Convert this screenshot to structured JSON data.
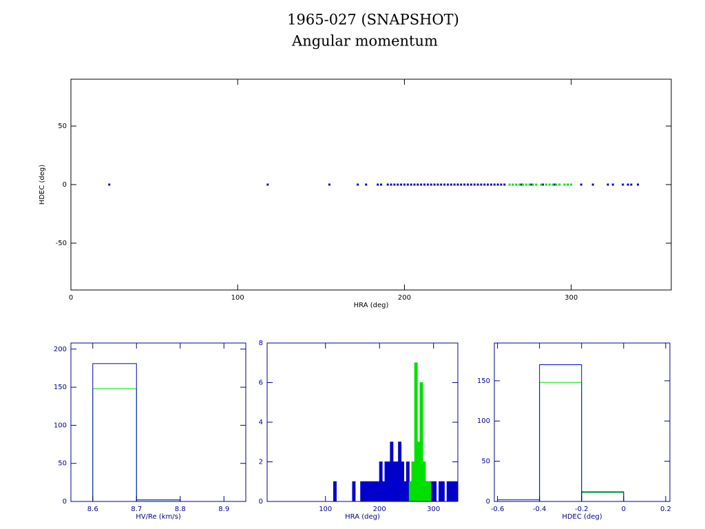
{
  "header": {
    "title": "1965-027 (SNAPSHOT)",
    "subtitle": "Angular momentum"
  },
  "chart_data": [
    {
      "type": "scatter",
      "xlabel": "HRA (deg)",
      "ylabel": "HDEC (deg)",
      "xlim": [
        0,
        360
      ],
      "ylim": [
        -90,
        90
      ],
      "xticks": [
        0,
        100,
        200,
        300
      ],
      "yticks": [
        -50,
        0,
        50
      ],
      "axis_color": "#000000",
      "series": [
        {
          "color": "#0000cc",
          "x": [
            23,
            118,
            155,
            172,
            177,
            184,
            186,
            190,
            192,
            194,
            196,
            198,
            200,
            202,
            204,
            206,
            208,
            210,
            212,
            214,
            216,
            218,
            220,
            222,
            224,
            226,
            228,
            230,
            232,
            234,
            236,
            238,
            240,
            242,
            244,
            246,
            248,
            250,
            252,
            254,
            256,
            258,
            260,
            265,
            270,
            276,
            283,
            290,
            298,
            306,
            313,
            322,
            325,
            331,
            334,
            336,
            340
          ],
          "values": [
            0,
            0,
            0,
            0,
            0,
            0,
            0,
            0,
            0,
            0,
            0,
            0,
            0,
            0,
            0,
            0,
            0,
            0,
            0,
            0,
            0,
            0,
            0,
            0,
            0,
            0,
            0,
            0,
            0,
            0,
            0,
            0,
            0,
            0,
            0,
            0,
            0,
            0,
            0,
            0,
            0,
            0,
            0,
            0,
            0,
            0,
            0,
            0,
            0,
            0,
            0,
            0,
            0,
            0,
            0,
            0,
            0
          ]
        },
        {
          "color": "#00e000",
          "x": [
            263,
            265,
            267,
            269,
            271,
            273,
            275,
            277,
            279,
            282,
            285,
            287,
            289,
            291,
            293,
            296,
            298,
            300
          ],
          "values": [
            0,
            0,
            0,
            0,
            0,
            0,
            0,
            0,
            0,
            0,
            0,
            0,
            0,
            0,
            0,
            0,
            0,
            0
          ]
        }
      ]
    },
    {
      "type": "histogram",
      "xlabel": "HV/Re (km/s)",
      "axis_color": "#00008b",
      "xlim": [
        8.55,
        8.95
      ],
      "ylim": [
        0,
        208
      ],
      "xticks": [
        8.6,
        8.7,
        8.8,
        8.9
      ],
      "yticks": [
        0,
        50,
        100,
        150,
        200
      ],
      "filled": false,
      "bins": [
        8.6,
        8.7,
        8.8
      ],
      "series": [
        {
          "color": "#00e000",
          "values": [
            148,
            2
          ]
        },
        {
          "color": "#0000cc",
          "values": [
            181,
            2
          ]
        }
      ]
    },
    {
      "type": "histogram",
      "xlabel": "HRA (deg)",
      "axis_color": "#00008b",
      "xlim": [
        -8,
        345
      ],
      "ylim": [
        0,
        8
      ],
      "xticks": [
        100,
        200,
        300
      ],
      "yticks": [
        0,
        2,
        4,
        6,
        8
      ],
      "filled": true,
      "bins": [
        115,
        120,
        125,
        130,
        135,
        140,
        145,
        150,
        155,
        160,
        165,
        170,
        175,
        180,
        185,
        190,
        195,
        200,
        205,
        210,
        215,
        220,
        225,
        230,
        235,
        240,
        245,
        250,
        255,
        260,
        265,
        270,
        275,
        280,
        285,
        290,
        295,
        300,
        305,
        310,
        315,
        320,
        325,
        330,
        335,
        340,
        345
      ],
      "series": [
        {
          "color": "#0000cc",
          "values": [
            1,
            0,
            0,
            0,
            0,
            0,
            0,
            1,
            0,
            0,
            1,
            1,
            1,
            1,
            1,
            1,
            1,
            2,
            1,
            2,
            2,
            3,
            2,
            2,
            3,
            2,
            1,
            2,
            1,
            2,
            1,
            1,
            1,
            1,
            1,
            1,
            1,
            1,
            0,
            1,
            1,
            0,
            1,
            1,
            1,
            1
          ]
        },
        {
          "color": "#00e000",
          "values": [
            0,
            0,
            0,
            0,
            0,
            0,
            0,
            0,
            0,
            0,
            0,
            0,
            0,
            0,
            0,
            0,
            0,
            0,
            0,
            0,
            0,
            0,
            0,
            0,
            0,
            0,
            0,
            0,
            1,
            2,
            7,
            3,
            6,
            2,
            1,
            1,
            0,
            0,
            0,
            0,
            0,
            0,
            0,
            0,
            0,
            0
          ]
        }
      ]
    },
    {
      "type": "histogram",
      "xlabel": "HDEC (deg)",
      "axis_color": "#00008b",
      "xlim": [
        -0.615,
        0.22
      ],
      "ylim": [
        0,
        197
      ],
      "xticks": [
        -0.6,
        -0.4,
        -0.2,
        0,
        0.2
      ],
      "yticks": [
        0,
        50,
        100,
        150
      ],
      "filled": false,
      "bins": [
        -0.6,
        -0.4,
        -0.2,
        0
      ],
      "series": [
        {
          "color": "#00e000",
          "values": [
            0,
            148,
            11
          ]
        },
        {
          "color": "#0000cc",
          "values": [
            2,
            170,
            12
          ]
        }
      ]
    }
  ]
}
